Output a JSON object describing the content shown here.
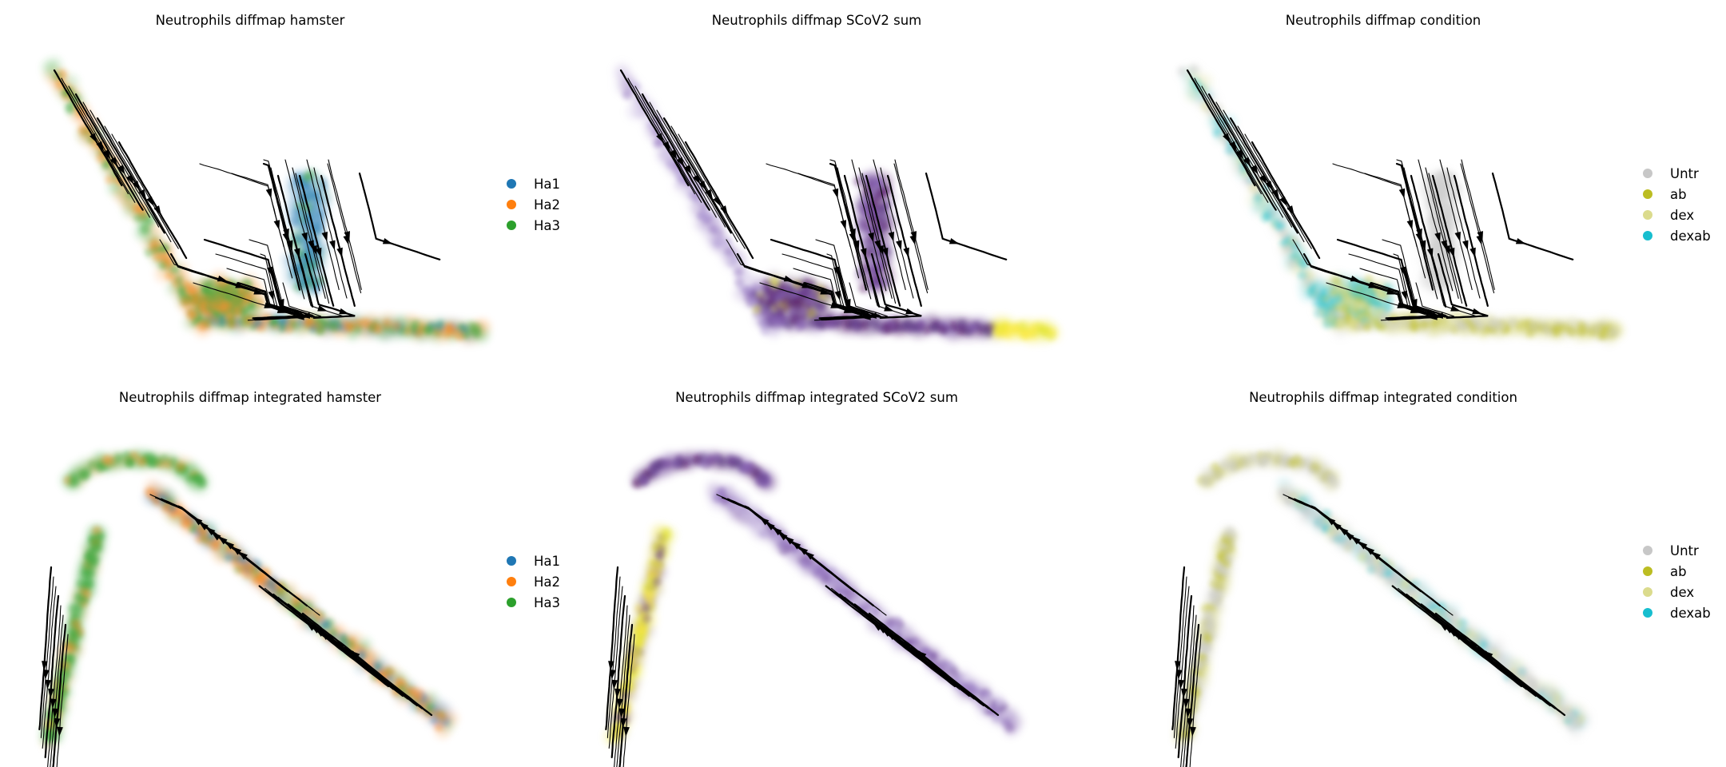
{
  "chart_data": [
    {
      "type": "scatter",
      "title": "Neutrophils diffmap hamster",
      "embedding": "diffmap",
      "color_by": "categorical",
      "legend_placement": "right",
      "grid": false,
      "series": [
        {
          "name": "Ha1",
          "color": "#1f77b4"
        },
        {
          "name": "Ha2",
          "color": "#ff7f0e"
        },
        {
          "name": "Ha3",
          "color": "#2ca02c"
        }
      ]
    },
    {
      "type": "scatter",
      "title": "Neutrophils diffmap SCoV2 sum",
      "embedding": "diffmap",
      "color_by": "continuous",
      "colormap": [
        "#440154",
        "#3b0f70",
        "#6a3d9a",
        "#b8a0d6",
        "#e6e01a",
        "#fde725"
      ],
      "grid": false
    },
    {
      "type": "scatter",
      "title": "Neutrophils diffmap condition",
      "embedding": "diffmap",
      "color_by": "categorical",
      "legend_placement": "right",
      "grid": false,
      "series": [
        {
          "name": "Untr",
          "color": "#c7c7c7"
        },
        {
          "name": "ab",
          "color": "#bcbd22"
        },
        {
          "name": "dex",
          "color": "#dbdb8d"
        },
        {
          "name": "dexab",
          "color": "#17becf"
        }
      ]
    },
    {
      "type": "scatter",
      "title": "Neutrophils diffmap integrated hamster",
      "embedding": "diffmap integrated",
      "color_by": "categorical",
      "legend_placement": "right",
      "grid": false,
      "series": [
        {
          "name": "Ha1",
          "color": "#1f77b4"
        },
        {
          "name": "Ha2",
          "color": "#ff7f0e"
        },
        {
          "name": "Ha3",
          "color": "#2ca02c"
        }
      ]
    },
    {
      "type": "scatter",
      "title": "Neutrophils diffmap integrated SCoV2 sum",
      "embedding": "diffmap integrated",
      "color_by": "continuous",
      "colormap": [
        "#440154",
        "#3b0f70",
        "#6a3d9a",
        "#b8a0d6",
        "#e6e01a",
        "#fde725"
      ],
      "grid": false
    },
    {
      "type": "scatter",
      "title": "Neutrophils diffmap integrated condition",
      "embedding": "diffmap integrated",
      "color_by": "categorical",
      "legend_placement": "right",
      "grid": false,
      "series": [
        {
          "name": "Untr",
          "color": "#c7c7c7"
        },
        {
          "name": "ab",
          "color": "#bcbd22"
        },
        {
          "name": "dex",
          "color": "#dbdb8d"
        },
        {
          "name": "dexab",
          "color": "#17becf"
        }
      ]
    }
  ]
}
